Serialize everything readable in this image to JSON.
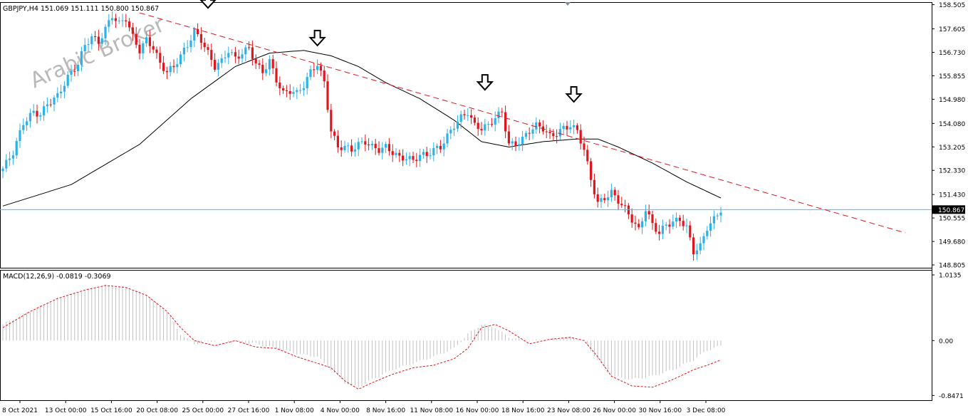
{
  "window": {
    "symbol_line": "GBPJPY,H4  151.069 151.111 150.800 150.867",
    "watermark": "Arabic Broker",
    "current_price_label": "150.867"
  },
  "colors": {
    "bull": "#2cb1e8",
    "bear": "#e0161d",
    "trendline": "#e0161d",
    "moving_average": "#000000",
    "macd_histogram": "#c0c0c0",
    "macd_signal": "#e0161d",
    "grid_border": "#000000",
    "price_line": "#8aa4c0"
  },
  "chart_data": [
    {
      "type": "candlestick",
      "panel": "price",
      "symbol": "GBPJPY",
      "timeframe": "H4",
      "quote": {
        "open": 151.069,
        "high": 151.111,
        "low": 150.8,
        "close": 150.867
      },
      "ylim": [
        148.7,
        158.6
      ],
      "ytick_labels": [
        "158.505",
        "157.605",
        "156.730",
        "155.855",
        "154.980",
        "154.080",
        "153.205",
        "152.330",
        "151.430",
        "150.555",
        "149.680",
        "148.805"
      ],
      "ytick_values": [
        158.505,
        157.605,
        156.73,
        155.855,
        154.98,
        154.08,
        153.205,
        152.33,
        151.43,
        150.555,
        149.68,
        148.805
      ],
      "current_price": 150.867,
      "xtick_labels": [
        "8 Oct 2021",
        "13 Oct 00:00",
        "15 Oct 16:00",
        "20 Oct 08:00",
        "25 Oct 00:00",
        "27 Oct 16:00",
        "1 Nov 08:00",
        "4 Nov 00:00",
        "8 Nov 16:00",
        "11 Nov 08:00",
        "16 Nov 00:00",
        "18 Nov 16:00",
        "23 Nov 08:00",
        "26 Nov 00:00",
        "30 Nov 16:00",
        "3 Dec 08:00"
      ],
      "close_path": [
        [
          0,
          152.4
        ],
        [
          3,
          153.0
        ],
        [
          6,
          154.1
        ],
        [
          9,
          154.5
        ],
        [
          11,
          154.4
        ],
        [
          13,
          154.8
        ],
        [
          16,
          155.1
        ],
        [
          19,
          155.8
        ],
        [
          22,
          156.3
        ],
        [
          24,
          157.0
        ],
        [
          26,
          157.3
        ],
        [
          28,
          157.1
        ],
        [
          30,
          157.6
        ],
        [
          32,
          158.1
        ],
        [
          34,
          157.8
        ],
        [
          36,
          158.0
        ],
        [
          38,
          157.3
        ],
        [
          40,
          156.8
        ],
        [
          42,
          157.2
        ],
        [
          44,
          156.9
        ],
        [
          46,
          156.3
        ],
        [
          48,
          156.0
        ],
        [
          50,
          156.2
        ],
        [
          52,
          156.6
        ],
        [
          54,
          157.0
        ],
        [
          56,
          157.5
        ],
        [
          58,
          157.2
        ],
        [
          60,
          156.7
        ],
        [
          62,
          156.2
        ],
        [
          64,
          156.4
        ],
        [
          66,
          156.8
        ],
        [
          68,
          156.5
        ],
        [
          70,
          156.7
        ],
        [
          72,
          156.9
        ],
        [
          74,
          156.3
        ],
        [
          76,
          156.0
        ],
        [
          78,
          156.4
        ],
        [
          80,
          155.7
        ],
        [
          82,
          155.2
        ],
        [
          84,
          155.3
        ],
        [
          86,
          155.2
        ],
        [
          88,
          155.5
        ],
        [
          90,
          156.0
        ],
        [
          92,
          156.3
        ],
        [
          94,
          155.6
        ],
        [
          96,
          153.8
        ],
        [
          98,
          153.2
        ],
        [
          100,
          153.2
        ],
        [
          102,
          153.1
        ],
        [
          104,
          153.3
        ],
        [
          106,
          153.4
        ],
        [
          108,
          153.2
        ],
        [
          110,
          153.1
        ],
        [
          112,
          153.2
        ],
        [
          114,
          153.0
        ],
        [
          116,
          152.8
        ],
        [
          118,
          152.8
        ],
        [
          120,
          152.7
        ],
        [
          122,
          152.9
        ],
        [
          124,
          152.9
        ],
        [
          126,
          153.1
        ],
        [
          128,
          153.2
        ],
        [
          130,
          153.6
        ],
        [
          132,
          154.0
        ],
        [
          134,
          154.3
        ],
        [
          136,
          154.5
        ],
        [
          138,
          154.0
        ],
        [
          140,
          153.9
        ],
        [
          142,
          154.0
        ],
        [
          144,
          154.3
        ],
        [
          146,
          154.5
        ],
        [
          148,
          153.3
        ],
        [
          150,
          153.3
        ],
        [
          152,
          153.5
        ],
        [
          154,
          153.8
        ],
        [
          156,
          154.0
        ],
        [
          158,
          153.9
        ],
        [
          160,
          153.6
        ],
        [
          162,
          153.7
        ],
        [
          164,
          153.9
        ],
        [
          166,
          154.0
        ],
        [
          168,
          153.8
        ],
        [
          170,
          153.1
        ],
        [
          172,
          152.0
        ],
        [
          174,
          151.1
        ],
        [
          176,
          151.3
        ],
        [
          178,
          151.5
        ],
        [
          180,
          151.2
        ],
        [
          182,
          150.9
        ],
        [
          184,
          150.5
        ],
        [
          186,
          150.1
        ],
        [
          188,
          150.9
        ],
        [
          190,
          150.3
        ],
        [
          192,
          150.0
        ],
        [
          194,
          150.3
        ],
        [
          196,
          150.4
        ],
        [
          198,
          150.5
        ],
        [
          200,
          150.2
        ],
        [
          202,
          149.3
        ],
        [
          204,
          149.5
        ],
        [
          206,
          150.2
        ],
        [
          208,
          150.5
        ],
        [
          210,
          150.867
        ]
      ],
      "moving_average_path": [
        [
          0,
          151.0
        ],
        [
          20,
          151.8
        ],
        [
          40,
          153.3
        ],
        [
          55,
          155.0
        ],
        [
          68,
          156.2
        ],
        [
          78,
          156.7
        ],
        [
          88,
          156.8
        ],
        [
          96,
          156.6
        ],
        [
          104,
          156.2
        ],
        [
          112,
          155.6
        ],
        [
          122,
          155.0
        ],
        [
          132,
          154.2
        ],
        [
          140,
          153.4
        ],
        [
          148,
          153.2
        ],
        [
          158,
          153.4
        ],
        [
          168,
          153.5
        ],
        [
          174,
          153.5
        ],
        [
          180,
          153.2
        ],
        [
          190,
          152.6
        ],
        [
          200,
          151.9
        ],
        [
          210,
          151.3
        ]
      ],
      "trendline": {
        "from": [
          40,
          158.2
        ],
        "to": [
          264,
          150.0
        ]
      },
      "arrows_down_at": [
        [
          60,
          158.25
        ],
        [
          92,
          156.85
        ],
        [
          141,
          155.2
        ],
        [
          167,
          154.75
        ]
      ]
    },
    {
      "type": "area",
      "panel": "macd",
      "indicator": "MACD(12,26,9) -0.0819 -0.3069",
      "ylim": [
        -0.92,
        1.08
      ],
      "ytick_labels": [
        "1.0135",
        "0.00",
        "-0.8471"
      ],
      "ytick_values": [
        1.0135,
        0.0,
        -0.8471
      ],
      "histogram_path": [
        [
          0,
          0.25
        ],
        [
          8,
          0.45
        ],
        [
          16,
          0.65
        ],
        [
          24,
          0.78
        ],
        [
          30,
          0.85
        ],
        [
          36,
          0.82
        ],
        [
          42,
          0.7
        ],
        [
          48,
          0.45
        ],
        [
          52,
          0.1
        ],
        [
          56,
          -0.05
        ],
        [
          62,
          0.0
        ],
        [
          68,
          -0.02
        ],
        [
          74,
          -0.05
        ],
        [
          80,
          -0.12
        ],
        [
          86,
          -0.2
        ],
        [
          92,
          -0.25
        ],
        [
          96,
          -0.45
        ],
        [
          100,
          -0.65
        ],
        [
          104,
          -0.72
        ],
        [
          108,
          -0.6
        ],
        [
          114,
          -0.45
        ],
        [
          120,
          -0.35
        ],
        [
          126,
          -0.25
        ],
        [
          132,
          -0.12
        ],
        [
          136,
          0.1
        ],
        [
          140,
          0.25
        ],
        [
          144,
          0.2
        ],
        [
          148,
          0.05
        ],
        [
          154,
          0.0
        ],
        [
          160,
          0.02
        ],
        [
          166,
          0.05
        ],
        [
          170,
          0.0
        ],
        [
          174,
          -0.3
        ],
        [
          178,
          -0.55
        ],
        [
          184,
          -0.6
        ],
        [
          190,
          -0.55
        ],
        [
          196,
          -0.45
        ],
        [
          202,
          -0.3
        ],
        [
          206,
          -0.15
        ],
        [
          210,
          -0.08
        ]
      ],
      "signal_path": [
        [
          0,
          0.2
        ],
        [
          8,
          0.45
        ],
        [
          16,
          0.65
        ],
        [
          24,
          0.78
        ],
        [
          30,
          0.85
        ],
        [
          36,
          0.82
        ],
        [
          42,
          0.7
        ],
        [
          48,
          0.45
        ],
        [
          52,
          0.2
        ],
        [
          56,
          0.0
        ],
        [
          62,
          -0.08
        ],
        [
          68,
          0.0
        ],
        [
          74,
          -0.1
        ],
        [
          80,
          -0.12
        ],
        [
          86,
          -0.25
        ],
        [
          92,
          -0.35
        ],
        [
          96,
          -0.42
        ],
        [
          100,
          -0.62
        ],
        [
          104,
          -0.75
        ],
        [
          108,
          -0.65
        ],
        [
          114,
          -0.52
        ],
        [
          120,
          -0.42
        ],
        [
          126,
          -0.38
        ],
        [
          132,
          -0.28
        ],
        [
          136,
          -0.12
        ],
        [
          140,
          0.2
        ],
        [
          144,
          0.25
        ],
        [
          148,
          0.15
        ],
        [
          154,
          -0.05
        ],
        [
          160,
          0.02
        ],
        [
          166,
          0.05
        ],
        [
          170,
          0.0
        ],
        [
          174,
          -0.25
        ],
        [
          178,
          -0.55
        ],
        [
          184,
          -0.7
        ],
        [
          190,
          -0.72
        ],
        [
          196,
          -0.6
        ],
        [
          202,
          -0.45
        ],
        [
          206,
          -0.38
        ],
        [
          210,
          -0.3
        ]
      ]
    }
  ]
}
